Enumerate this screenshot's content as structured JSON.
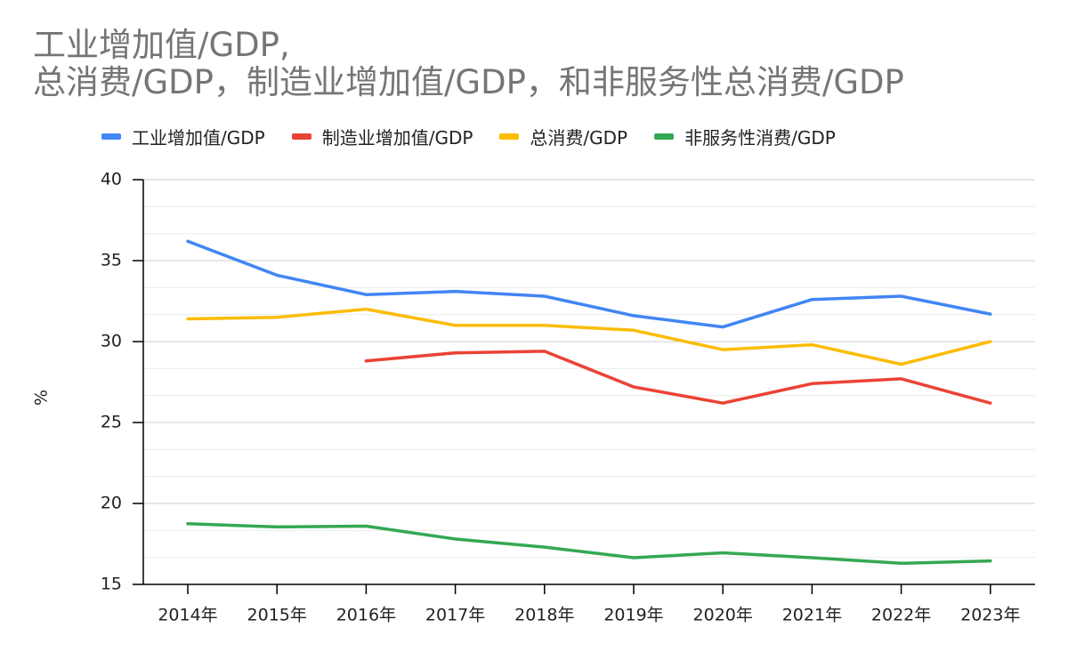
{
  "chart_data": {
    "type": "line",
    "title_lines": [
      "工业增加值/GDP,",
      "总消费/GDP，制造业增加值/GDP，和非服务性总消费/GDP"
    ],
    "xlabel": "",
    "ylabel": "%",
    "categories": [
      "2014年",
      "2015年",
      "2016年",
      "2017年",
      "2018年",
      "2019年",
      "2020年",
      "2021年",
      "2022年",
      "2023年"
    ],
    "ylim": [
      15,
      40
    ],
    "yticks": [
      15,
      20,
      25,
      30,
      35,
      40
    ],
    "minor_grid_step": 1.6667,
    "legend_position": "top",
    "series": [
      {
        "name": "工业增加值/GDP",
        "color": "#4285f4",
        "values": [
          36.2,
          34.1,
          32.9,
          33.1,
          32.8,
          31.6,
          30.9,
          32.6,
          32.8,
          31.7
        ]
      },
      {
        "name": "制造业增加值/GDP",
        "color": "#ea4335",
        "values": [
          null,
          null,
          28.8,
          29.3,
          29.4,
          27.2,
          26.2,
          27.4,
          27.7,
          26.2
        ]
      },
      {
        "name": "总消费/GDP",
        "color": "#fbbc04",
        "values": [
          31.4,
          31.5,
          32.0,
          31.0,
          31.0,
          30.7,
          29.5,
          29.8,
          28.6,
          30.0
        ]
      },
      {
        "name": "非服务性消费/GDP",
        "color": "#34a853",
        "values": [
          18.75,
          18.55,
          18.6,
          17.8,
          17.3,
          16.65,
          16.95,
          16.65,
          16.3,
          16.45
        ]
      }
    ]
  }
}
